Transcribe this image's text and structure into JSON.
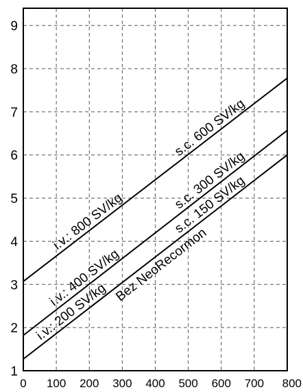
{
  "chart_data": {
    "type": "line",
    "xlim": [
      0,
      800
    ],
    "ylim": [
      1,
      9.4
    ],
    "x_ticks": [
      "0",
      "100",
      "200",
      "300",
      "400",
      "500",
      "600",
      "700",
      "800"
    ],
    "y_ticks": [
      "1",
      "2",
      "3",
      "4",
      "5",
      "6",
      "7",
      "8",
      "9"
    ],
    "grid": true,
    "series": [
      {
        "x": [
          0,
          800
        ],
        "y": [
          3.07,
          7.78
        ]
      },
      {
        "x": [
          0,
          800
        ],
        "y": [
          1.82,
          6.57
        ]
      },
      {
        "x": [
          0,
          800
        ],
        "y": [
          1.27,
          6.0
        ]
      }
    ],
    "annotations": [
      "i.v.: 800 SV/kg",
      "s.c. 600 SV/kg",
      "i.v.: 400 SV/kg",
      "s.c. 300 SV/kg",
      "i.v.: 200 SV/kg",
      "s.c. 150 SV/kg",
      "Bez NeoRecormon"
    ]
  }
}
